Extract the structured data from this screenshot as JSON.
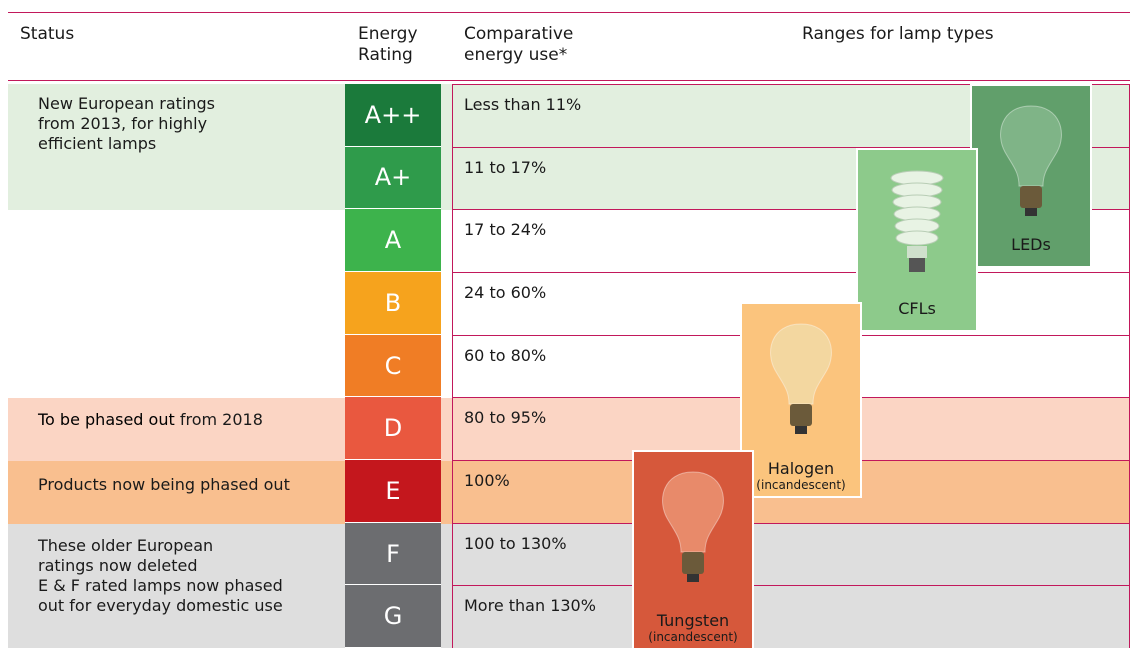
{
  "header": {
    "status": "Status",
    "energy_rating": "Energy Rating",
    "comparative": "Comparative energy use*",
    "ranges": "Ranges for lamp types"
  },
  "rows": [
    {
      "rating": "A++",
      "energy_use": "Less than 11%"
    },
    {
      "rating": "A+",
      "energy_use": "11 to 17%"
    },
    {
      "rating": "A",
      "energy_use": "17 to 24%"
    },
    {
      "rating": "B",
      "energy_use": "24 to 60%"
    },
    {
      "rating": "C",
      "energy_use": "60 to 80%"
    },
    {
      "rating": "D",
      "energy_use": "80 to 95%"
    },
    {
      "rating": "E",
      "energy_use": "100%"
    },
    {
      "rating": "F",
      "energy_use": "100 to 130%"
    },
    {
      "rating": "G",
      "energy_use": "More than 130%"
    }
  ],
  "status_groups": [
    {
      "title": "New European ratings",
      "text": "from 2013, for highly efficient lamps"
    },
    {
      "bold": "To be phased out",
      "text": "from 2018"
    },
    {
      "text": "Products now",
      "bold": "being phased out"
    },
    {
      "title": "These older European ratings now deleted",
      "text": "E & F rated lamps now phased out for everyday domestic use"
    }
  ],
  "lamps": [
    {
      "name": "LEDs"
    },
    {
      "name": "CFLs"
    },
    {
      "name": "Halogen",
      "note": "(incandescent)"
    },
    {
      "name": "Tungsten",
      "note": "(incandescent)"
    }
  ]
}
